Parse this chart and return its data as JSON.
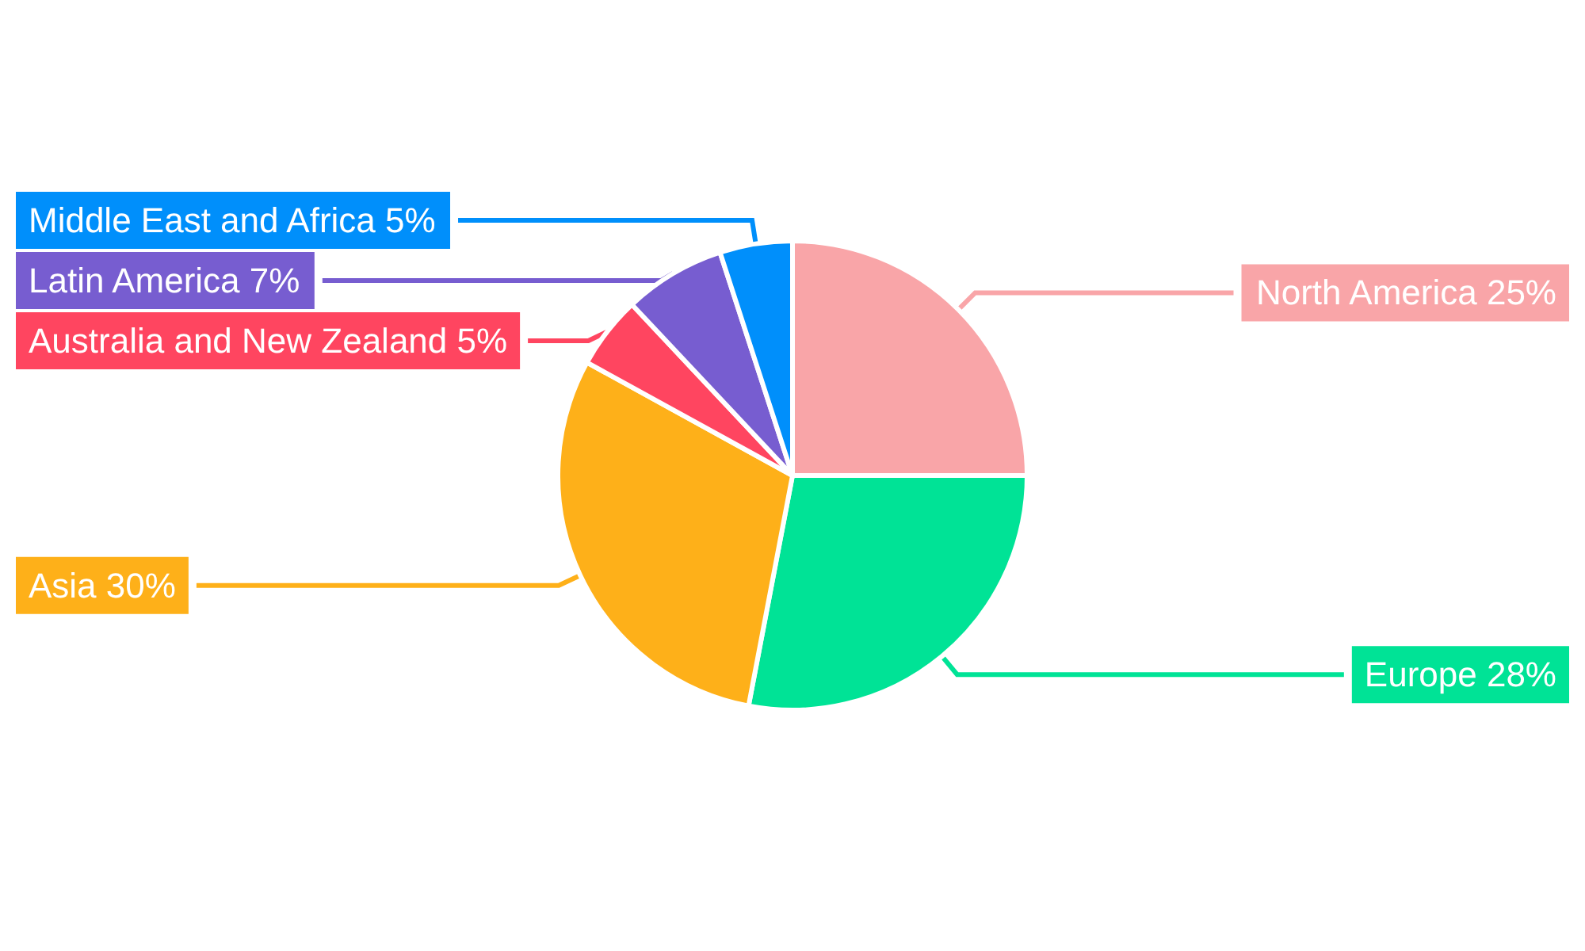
{
  "chart_data": {
    "type": "pie",
    "categories": [
      "North America",
      "Europe",
      "Asia",
      "Australia and New Zealand",
      "Latin America",
      "Middle East and Africa"
    ],
    "values": [
      25,
      28,
      30,
      5,
      7,
      5
    ],
    "value_labels": [
      "25%",
      "28%",
      "30%",
      "5%",
      "7%",
      "5%"
    ],
    "colors": [
      "#f9a5a8",
      "#00e396",
      "#feb019",
      "#ff4560",
      "#775dd0",
      "#008ffb"
    ],
    "legend": false
  }
}
